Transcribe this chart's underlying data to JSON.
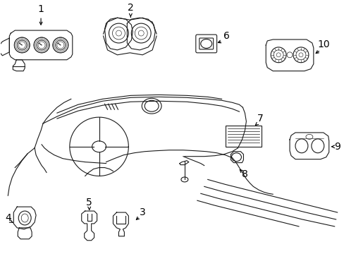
{
  "background_color": "#ffffff",
  "line_color": "#1a1a1a",
  "label_color": "#000000",
  "font_size_labels": 10,
  "line_width": 0.8,
  "figsize": [
    4.89,
    3.6
  ],
  "dpi": 100
}
